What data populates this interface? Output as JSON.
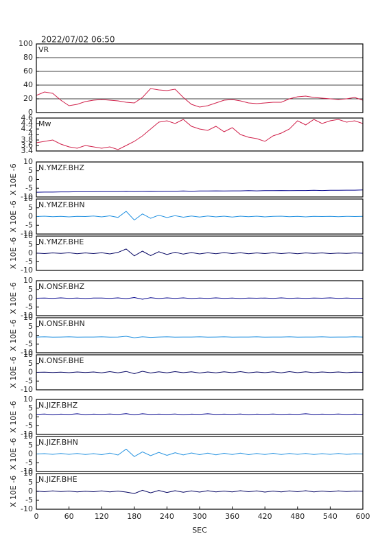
{
  "chart_data": [
    {
      "type": "line",
      "title": "2022/07/02 06:50",
      "label": "VR",
      "color": "#d0204a",
      "grid": true,
      "xlim": [
        0,
        600
      ],
      "ylim": [
        0,
        100
      ],
      "yticks": [
        0,
        20,
        40,
        60,
        80,
        100
      ],
      "x": [
        0,
        15,
        30,
        45,
        60,
        75,
        90,
        105,
        120,
        135,
        150,
        165,
        180,
        195,
        210,
        225,
        240,
        255,
        270,
        285,
        300,
        315,
        330,
        345,
        360,
        375,
        390,
        405,
        420,
        435,
        450,
        465,
        480,
        495,
        510,
        525,
        540,
        555,
        570,
        585,
        600
      ],
      "values": [
        25,
        30,
        28,
        18,
        10,
        12,
        16,
        18,
        19,
        18,
        17,
        15,
        14,
        22,
        35,
        33,
        32,
        34,
        22,
        12,
        8,
        10,
        14,
        18,
        19,
        17,
        14,
        13,
        14,
        15,
        15,
        20,
        23,
        24,
        22,
        21,
        20,
        19,
        20,
        22,
        18
      ]
    },
    {
      "type": "line",
      "label": "Mw",
      "color": "#d0204a",
      "xlim": [
        0,
        600
      ],
      "ylim": [
        3.4,
        4.6
      ],
      "yticks": [
        3.4,
        3.6,
        3.8,
        4,
        4.2,
        4.4,
        4.6
      ],
      "x": [
        0,
        15,
        30,
        45,
        60,
        75,
        90,
        105,
        120,
        135,
        150,
        165,
        180,
        195,
        210,
        225,
        240,
        255,
        270,
        285,
        300,
        315,
        330,
        345,
        360,
        375,
        390,
        405,
        420,
        435,
        450,
        465,
        480,
        495,
        510,
        525,
        540,
        555,
        570,
        585,
        600
      ],
      "values": [
        3.7,
        3.75,
        3.8,
        3.65,
        3.55,
        3.5,
        3.6,
        3.55,
        3.5,
        3.55,
        3.45,
        3.6,
        3.75,
        3.95,
        4.2,
        4.45,
        4.5,
        4.4,
        4.55,
        4.3,
        4.2,
        4.15,
        4.3,
        4.1,
        4.25,
        4.0,
        3.9,
        3.85,
        3.75,
        3.95,
        4.05,
        4.2,
        4.5,
        4.35,
        4.55,
        4.4,
        4.5,
        4.55,
        4.45,
        4.5,
        4.4
      ]
    },
    {
      "type": "line",
      "label": "N.YMZF.BHZ",
      "ylabel": "X 10E -6",
      "color": "#00008b",
      "xlim": [
        0,
        600
      ],
      "ylim": [
        -10,
        10
      ],
      "yticks": [
        -10,
        -5,
        0,
        5,
        10
      ],
      "x": [
        0,
        15,
        30,
        45,
        60,
        75,
        90,
        105,
        120,
        135,
        150,
        165,
        180,
        195,
        210,
        225,
        240,
        255,
        270,
        285,
        300,
        315,
        330,
        345,
        360,
        375,
        390,
        405,
        420,
        435,
        450,
        465,
        480,
        495,
        510,
        525,
        540,
        555,
        570,
        585,
        600
      ],
      "values": [
        -7.3,
        -7.2,
        -7.2,
        -7.1,
        -7.1,
        -7.0,
        -7.0,
        -7.0,
        -6.9,
        -6.9,
        -6.9,
        -6.8,
        -6.9,
        -6.8,
        -6.7,
        -6.8,
        -6.7,
        -6.7,
        -6.6,
        -6.7,
        -6.6,
        -6.6,
        -6.5,
        -6.6,
        -6.5,
        -6.5,
        -6.4,
        -6.5,
        -6.4,
        -6.4,
        -6.3,
        -6.4,
        -6.3,
        -6.3,
        -6.2,
        -6.3,
        -6.2,
        -6.2,
        -6.1,
        -6.1,
        -6.0
      ]
    },
    {
      "type": "line",
      "label": "N.YMZF.BHN",
      "ylabel": "X 10E -6",
      "color": "#2090e0",
      "xlim": [
        0,
        600
      ],
      "ylim": [
        -10,
        10
      ],
      "yticks": [
        -10,
        -5,
        0,
        5,
        10
      ],
      "x": [
        0,
        15,
        30,
        45,
        60,
        75,
        90,
        105,
        120,
        135,
        150,
        165,
        180,
        195,
        210,
        225,
        240,
        255,
        270,
        285,
        300,
        315,
        330,
        345,
        360,
        375,
        390,
        405,
        420,
        435,
        450,
        465,
        480,
        495,
        510,
        525,
        540,
        555,
        570,
        585,
        600
      ],
      "values": [
        0,
        0.2,
        -0.1,
        0.1,
        -0.2,
        0.1,
        0,
        0.3,
        -0.2,
        0.4,
        -0.5,
        3,
        -2,
        1.5,
        -1,
        0.8,
        -0.6,
        0.5,
        -0.4,
        0.3,
        -0.3,
        0.3,
        -0.2,
        0.2,
        -0.3,
        0.2,
        -0.1,
        0.2,
        -0.2,
        0.1,
        0.2,
        -0.1,
        0.1,
        -0.2,
        0.1,
        0,
        0.1,
        -0.1,
        0.1,
        0,
        0.1
      ]
    },
    {
      "type": "line",
      "label": "N.YMZF.BHE",
      "ylabel": "X 10E -6",
      "color": "#000060",
      "xlim": [
        0,
        600
      ],
      "ylim": [
        -10,
        10
      ],
      "yticks": [
        -10,
        -5,
        0,
        5,
        10
      ],
      "x": [
        0,
        15,
        30,
        45,
        60,
        75,
        90,
        105,
        120,
        135,
        150,
        165,
        180,
        195,
        210,
        225,
        240,
        255,
        270,
        285,
        300,
        315,
        330,
        345,
        360,
        375,
        390,
        405,
        420,
        435,
        450,
        465,
        480,
        495,
        510,
        525,
        540,
        555,
        570,
        585,
        600
      ],
      "values": [
        0.1,
        -0.2,
        0.2,
        -0.1,
        0.3,
        -0.3,
        0.2,
        -0.2,
        0.3,
        -0.4,
        0.5,
        2.5,
        -1.5,
        1.2,
        -1.4,
        0.9,
        -0.7,
        0.6,
        -0.5,
        0.4,
        -0.4,
        0.3,
        -0.3,
        0.4,
        -0.2,
        0.3,
        -0.3,
        0.2,
        -0.2,
        0.3,
        -0.2,
        0.2,
        -0.3,
        0.2,
        -0.1,
        0.2,
        -0.2,
        0.1,
        -0.1,
        0.2,
        0
      ]
    },
    {
      "type": "line",
      "label": "N.ONSF.BHZ",
      "ylabel": "X 10E -6",
      "color": "#00008b",
      "xlim": [
        0,
        600
      ],
      "ylim": [
        -10,
        10
      ],
      "yticks": [
        -10,
        -5,
        0,
        5,
        10
      ],
      "x": [
        0,
        15,
        30,
        45,
        60,
        75,
        90,
        105,
        120,
        135,
        150,
        165,
        180,
        195,
        210,
        225,
        240,
        255,
        270,
        285,
        300,
        315,
        330,
        345,
        360,
        375,
        390,
        405,
        420,
        435,
        450,
        465,
        480,
        495,
        510,
        525,
        540,
        555,
        570,
        585,
        600
      ],
      "values": [
        0,
        0.1,
        -0.1,
        0.2,
        -0.1,
        0.1,
        -0.2,
        0.1,
        0.1,
        -0.1,
        0.2,
        -0.3,
        0.4,
        -0.6,
        0.3,
        -0.2,
        0.2,
        -0.1,
        0.2,
        -0.2,
        0.1,
        -0.1,
        0.2,
        -0.1,
        0.1,
        -0.2,
        0.1,
        0,
        0.1,
        -0.1,
        0.2,
        -0.1,
        0.1,
        -0.1,
        0.1,
        0,
        0.2,
        -0.1,
        0.1,
        -0.1,
        0
      ]
    },
    {
      "type": "line",
      "label": "N.ONSF.BHN",
      "ylabel": "X 10E -6",
      "color": "#2090e0",
      "xlim": [
        0,
        600
      ],
      "ylim": [
        -10,
        10
      ],
      "yticks": [
        -10,
        -5,
        0,
        5,
        10
      ],
      "x": [
        0,
        15,
        30,
        45,
        60,
        75,
        90,
        105,
        120,
        135,
        150,
        165,
        180,
        195,
        210,
        225,
        240,
        255,
        270,
        285,
        300,
        315,
        330,
        345,
        360,
        375,
        390,
        405,
        420,
        435,
        450,
        465,
        480,
        495,
        510,
        525,
        540,
        555,
        570,
        585,
        600
      ],
      "values": [
        -1,
        -0.9,
        -1.1,
        -1,
        -0.9,
        -1.1,
        -1,
        -1,
        -0.9,
        -1.1,
        -1,
        -0.6,
        -1.4,
        -0.9,
        -1.2,
        -1,
        -0.9,
        -1.1,
        -1,
        -1,
        -0.9,
        -1.1,
        -1,
        -0.9,
        -1.1,
        -1,
        -1,
        -0.9,
        -1.1,
        -1,
        -1,
        -0.9,
        -1.1,
        -1,
        -1,
        -0.9,
        -1.1,
        -1,
        -1,
        -0.9,
        -1
      ]
    },
    {
      "type": "line",
      "label": "N.ONSF.BHE",
      "ylabel": "X 10E -6",
      "color": "#000060",
      "xlim": [
        0,
        600
      ],
      "ylim": [
        -10,
        10
      ],
      "yticks": [
        -10,
        -5,
        0,
        5,
        10
      ],
      "x": [
        0,
        15,
        30,
        45,
        60,
        75,
        90,
        105,
        120,
        135,
        150,
        165,
        180,
        195,
        210,
        225,
        240,
        255,
        270,
        285,
        300,
        315,
        330,
        345,
        360,
        375,
        390,
        405,
        420,
        435,
        450,
        465,
        480,
        495,
        510,
        525,
        540,
        555,
        570,
        585,
        600
      ],
      "values": [
        0,
        0.1,
        -0.1,
        0.1,
        -0.2,
        0.2,
        -0.1,
        0.2,
        -0.3,
        0.4,
        -0.3,
        0.5,
        -0.8,
        0.6,
        -0.4,
        0.3,
        -0.3,
        0.4,
        -0.2,
        0.3,
        -0.4,
        0.2,
        -0.3,
        0.3,
        -0.2,
        0.4,
        -0.3,
        0.2,
        -0.2,
        0.3,
        -0.3,
        0.4,
        -0.2,
        0.3,
        -0.2,
        0.2,
        -0.1,
        0.2,
        -0.2,
        0.1,
        0
      ]
    },
    {
      "type": "line",
      "label": "N.JIZF.BHZ",
      "ylabel": "X 10E -6",
      "color": "#00008b",
      "xlim": [
        0,
        600
      ],
      "ylim": [
        -10,
        10
      ],
      "yticks": [
        -10,
        -5,
        0,
        5,
        10
      ],
      "x": [
        0,
        15,
        30,
        45,
        60,
        75,
        90,
        105,
        120,
        135,
        150,
        165,
        180,
        195,
        210,
        225,
        240,
        255,
        270,
        285,
        300,
        315,
        330,
        345,
        360,
        375,
        390,
        405,
        420,
        435,
        450,
        465,
        480,
        495,
        510,
        525,
        540,
        555,
        570,
        585,
        600
      ],
      "values": [
        1.5,
        1.7,
        1.3,
        1.6,
        1.4,
        1.8,
        1.3,
        1.6,
        1.5,
        1.7,
        1.4,
        1.9,
        1.2,
        1.8,
        1.4,
        1.6,
        1.5,
        1.7,
        1.3,
        1.6,
        1.5,
        1.8,
        1.4,
        1.6,
        1.5,
        1.7,
        1.3,
        1.6,
        1.5,
        1.7,
        1.4,
        1.6,
        1.5,
        1.8,
        1.4,
        1.6,
        1.5,
        1.7,
        1.4,
        1.6,
        1.5
      ]
    },
    {
      "type": "line",
      "label": "N.JIZF.BHN",
      "ylabel": "X 10E -6",
      "color": "#2090e0",
      "xlim": [
        0,
        600
      ],
      "ylim": [
        -10,
        10
      ],
      "yticks": [
        -10,
        -5,
        0,
        5,
        10
      ],
      "x": [
        0,
        15,
        30,
        45,
        60,
        75,
        90,
        105,
        120,
        135,
        150,
        165,
        180,
        195,
        210,
        225,
        240,
        255,
        270,
        285,
        300,
        315,
        330,
        345,
        360,
        375,
        390,
        405,
        420,
        435,
        450,
        465,
        480,
        495,
        510,
        525,
        540,
        555,
        570,
        585,
        600
      ],
      "values": [
        0,
        0.2,
        -0.2,
        0.3,
        -0.2,
        0.3,
        -0.3,
        0.2,
        -0.4,
        0.5,
        -0.6,
        2.8,
        -1.5,
        1.2,
        -1,
        0.9,
        -0.8,
        0.7,
        -0.5,
        0.6,
        -0.4,
        0.5,
        -0.5,
        0.4,
        -0.3,
        0.5,
        -0.4,
        0.3,
        -0.3,
        0.4,
        -0.3,
        0.3,
        -0.2,
        0.3,
        -0.3,
        0.2,
        -0.2,
        0.3,
        -0.2,
        0.1,
        0
      ]
    },
    {
      "type": "line",
      "label": "N.JIZF.BHE",
      "ylabel": "X 10E -6",
      "color": "#000060",
      "xlabel": "SEC",
      "xlim": [
        0,
        600
      ],
      "ylim": [
        -10,
        10
      ],
      "yticks": [
        -10,
        -5,
        0,
        5,
        10
      ],
      "xticks": [
        0,
        60,
        120,
        180,
        240,
        300,
        360,
        420,
        480,
        540,
        600
      ],
      "x": [
        0,
        15,
        30,
        45,
        60,
        75,
        90,
        105,
        120,
        135,
        150,
        165,
        180,
        195,
        210,
        225,
        240,
        255,
        270,
        285,
        300,
        315,
        330,
        345,
        360,
        375,
        390,
        405,
        420,
        435,
        450,
        465,
        480,
        495,
        510,
        525,
        540,
        555,
        570,
        585,
        600
      ],
      "values": [
        0.2,
        -0.2,
        0.3,
        -0.1,
        0.2,
        -0.3,
        0.1,
        -0.2,
        0.3,
        -0.3,
        0.2,
        -0.4,
        -1.2,
        0.6,
        -0.8,
        0.5,
        -0.6,
        0.4,
        -0.5,
        0.3,
        -0.4,
        0.4,
        -0.3,
        0.2,
        -0.3,
        0.4,
        -0.2,
        0.3,
        -0.4,
        0.2,
        -0.3,
        0.3,
        -0.2,
        0.4,
        -0.3,
        0.2,
        -0.2,
        0.3,
        -0.1,
        0.2,
        0.1
      ]
    }
  ]
}
